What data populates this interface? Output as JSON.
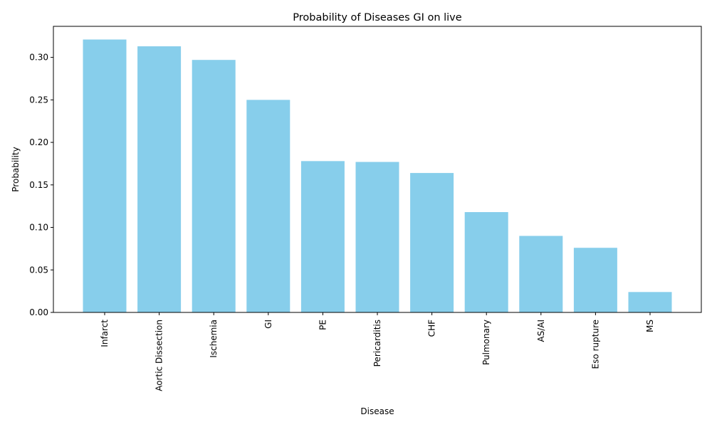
{
  "chart_data": {
    "type": "bar",
    "title": "Probability of Diseases GI on live",
    "xlabel": "Disease",
    "ylabel": "Probability",
    "categories": [
      "Infarct",
      "Aortic Dissection",
      "Ischemia",
      "GI",
      "PE",
      "Pericarditis",
      "CHF",
      "Pulmonary",
      "AS/AI",
      "Eso rupture",
      "MS"
    ],
    "values": [
      0.321,
      0.313,
      0.297,
      0.25,
      0.178,
      0.177,
      0.164,
      0.118,
      0.09,
      0.076,
      0.024
    ],
    "ylim": [
      0,
      0.3365
    ],
    "yticks": [
      "0.00",
      "0.05",
      "0.10",
      "0.15",
      "0.20",
      "0.25",
      "0.30"
    ],
    "bar_color": "#87CEEB",
    "grid": false,
    "legend": "none"
  }
}
